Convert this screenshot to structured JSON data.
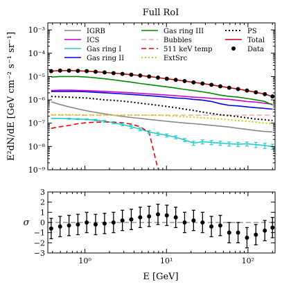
{
  "chart_data": [
    {
      "type": "line",
      "title": "Full RoI",
      "xlabel": "",
      "ylabel": "E²dN/dE [GeV cm⁻² s⁻¹ sr⁻¹]",
      "xscale": "log",
      "yscale": "log",
      "xlim": [
        0.35,
        215
      ],
      "ylim": [
        1e-09,
        0.002
      ],
      "x_ticks": [
        1,
        10,
        100
      ],
      "x_tick_labels": [
        "10⁰",
        "10¹",
        "10²"
      ],
      "y_ticks": [
        1e-09,
        1e-08,
        1e-07,
        1e-06,
        1e-05,
        0.0001,
        0.001
      ],
      "y_tick_labels": [
        "10⁻⁹",
        "10⁻⁸",
        "10⁻⁷",
        "10⁻⁶",
        "10⁻⁵",
        "10⁻⁴",
        "10⁻³"
      ],
      "legend_position": "top",
      "x": [
        0.385,
        0.495,
        0.637,
        0.819,
        1.05,
        1.35,
        1.74,
        2.24,
        2.88,
        3.7,
        4.76,
        6.12,
        7.87,
        10.1,
        13.0,
        16.7,
        21.5,
        27.7,
        35.6,
        45.7,
        58.8,
        75.6,
        97.2,
        125,
        161,
        200
      ],
      "series": [
        {
          "name": "IGRB",
          "color": "#888888",
          "style": "solid",
          "values": [
            8.2e-07,
            6.3e-07,
            5e-07,
            4.1e-07,
            3.4e-07,
            2.9e-07,
            2.5e-07,
            2.2e-07,
            1.95e-07,
            1.75e-07,
            1.6e-07,
            1.45e-07,
            1.32e-07,
            1.2e-07,
            1.1e-07,
            1.02e-07,
            9.5e-08,
            8.8e-08,
            8.1e-08,
            7.4e-08,
            6.8e-08,
            6e-08,
            5.4e-08,
            4.8e-08,
            4.4e-08,
            4.2e-08
          ]
        },
        {
          "name": "ICS",
          "color": "#cc00cc",
          "style": "solid",
          "values": [
            2.5e-06,
            2.6e-06,
            2.6e-06,
            2.55e-06,
            2.5e-06,
            2.4e-06,
            2.3e-06,
            2.2e-06,
            2.1e-06,
            2e-06,
            1.9e-06,
            1.8e-06,
            1.7e-06,
            1.6e-06,
            1.5e-06,
            1.4e-06,
            1.3e-06,
            1.25e-06,
            1.15e-06,
            1.1e-06,
            1.05e-06,
            9.5e-07,
            8.5e-07,
            8e-07,
            7.2e-07,
            6.5e-07
          ]
        },
        {
          "name": "Gas ring I",
          "color": "#22cccc",
          "style": "solid",
          "values": [
            1.6e-07,
            1.6e-07,
            1.55e-07,
            1.5e-07,
            1.45e-07,
            1.35e-07,
            1.2e-07,
            1.05e-07,
            8.8e-08,
            7e-08,
            5.5e-08,
            4.2e-08,
            3.5e-08,
            3e-08,
            2.5e-08,
            1.9e-08,
            1.4e-08,
            1.6e-08,
            1.5e-08,
            1.4e-08,
            1.3e-08,
            1.25e-08,
            1.3e-08,
            1.2e-08,
            1.1e-08,
            1e-08
          ]
        },
        {
          "name": "Gas ring II",
          "color": "#0000ee",
          "style": "solid",
          "values": [
            2.3e-06,
            2.3e-06,
            2.3e-06,
            2.3e-06,
            2.2e-06,
            2.1e-06,
            2e-06,
            1.9e-06,
            1.8e-06,
            1.7e-06,
            1.6e-06,
            1.5e-06,
            1.4e-06,
            1.3e-06,
            1.2e-06,
            1.15e-06,
            1.05e-06,
            9.8e-07,
            8.5e-07,
            6.8e-07,
            5.8e-07,
            5.5e-07,
            5e-07,
            4.6e-07,
            4.3e-07,
            4e-07
          ]
        },
        {
          "name": "Gas ring III",
          "color": "#008800",
          "style": "solid",
          "values": [
            9.5e-06,
            1e-05,
            1e-05,
            1e-05,
            9.5e-06,
            8.8e-06,
            8e-06,
            7.2e-06,
            6.4e-06,
            5.7e-06,
            5e-06,
            4.5e-06,
            4e-06,
            3.6e-06,
            3.2e-06,
            2.8e-06,
            2.5e-06,
            2.2e-06,
            1.9e-06,
            1.6e-06,
            1.4e-06,
            1.3e-06,
            1.15e-06,
            1e-06,
            8.5e-07,
            6e-07
          ]
        },
        {
          "name": "Bubbles",
          "color": "#ffaaaa",
          "style": "dashed",
          "values": [
            2.2e-07,
            2.2e-07,
            2.2e-07,
            2.2e-07,
            2.2e-07,
            2.2e-07,
            2.2e-07,
            2.2e-07,
            2.2e-07,
            2.2e-07,
            2.2e-07,
            2.2e-07,
            2.2e-07,
            2.2e-07,
            2.2e-07,
            2.2e-07,
            2.2e-07,
            2.2e-07,
            2.2e-07,
            2.2e-07,
            2.2e-07,
            2.2e-07,
            2.2e-07,
            2.2e-07,
            2.2e-07,
            2.2e-07
          ]
        },
        {
          "name": "511 keV temp",
          "color": "#ee0000",
          "style": "dashed",
          "values": [
            6e-08,
            7e-08,
            8e-08,
            9.5e-08,
            1.05e-07,
            1.1e-07,
            1.12e-07,
            1.1e-07,
            1.05e-07,
            9e-08,
            7e-08,
            4e-08,
            1.1e-09,
            null,
            null,
            null,
            null,
            null,
            null,
            null,
            null,
            null,
            null,
            null,
            null,
            1.1e-09
          ]
        },
        {
          "name": "ExtSrc",
          "color": "#cccc00",
          "style": "dotted",
          "values": [
            2.3e-07,
            2.3e-07,
            2.3e-07,
            2.3e-07,
            2.2e-07,
            2.2e-07,
            2.2e-07,
            2.2e-07,
            2.2e-07,
            2.2e-07,
            2.2e-07,
            2.2e-07,
            2.2e-07,
            2.1e-07,
            2e-07,
            1.9e-07,
            1.8e-07,
            1.7e-07,
            1.6e-07,
            1.5e-07,
            1.4e-07,
            1.3e-07,
            1.2e-07,
            1.1e-07,
            1e-07,
            9.5e-08
          ]
        },
        {
          "name": "PS",
          "color": "#000000",
          "style": "dotted",
          "values": [
            1.4e-06,
            1.35e-06,
            1.3e-06,
            1.25e-06,
            1.2e-06,
            1.1e-06,
            1e-06,
            9.5e-07,
            8.8e-07,
            8e-07,
            7.2e-07,
            6.5e-07,
            5.8e-07,
            5.2e-07,
            4.6e-07,
            4e-07,
            3.5e-07,
            3e-07,
            2.6e-07,
            2.3e-07,
            2.1e-07,
            1.9e-07,
            1.7e-07,
            1.5e-07,
            1.4e-07,
            1.3e-07
          ]
        },
        {
          "name": "Total",
          "color": "#cc0000",
          "style": "solid",
          "values": [
            1.7e-05,
            1.8e-05,
            1.8e-05,
            1.75e-05,
            1.7e-05,
            1.6e-05,
            1.5e-05,
            1.4e-05,
            1.3e-05,
            1.2e-05,
            1.1e-05,
            1e-05,
            9e-06,
            8e-06,
            7.2e-06,
            6.4e-06,
            5.6e-06,
            5e-06,
            4.4e-06,
            3.8e-06,
            3.3e-06,
            2.9e-06,
            2.5e-06,
            2.1e-06,
            1.75e-06,
            1.4e-06
          ]
        },
        {
          "name": "Data",
          "color": "#000000",
          "style": "points",
          "values": [
            1.7e-05,
            1.8e-05,
            1.8e-05,
            1.75e-05,
            1.7e-05,
            1.6e-05,
            1.5e-05,
            1.4e-05,
            1.3e-05,
            1.2e-05,
            1.1e-05,
            1e-05,
            9e-06,
            8e-06,
            7.2e-06,
            6.4e-06,
            5.6e-06,
            5e-06,
            4.4e-06,
            3.8e-06,
            3.3e-06,
            2.9e-06,
            2.5e-06,
            2.1e-06,
            1.75e-06,
            1.4e-06
          ]
        }
      ],
      "gas_ring_I_error": [
        0,
        0,
        0.05,
        0.05,
        0.05,
        0.08,
        0.1,
        0.1,
        0.12,
        0.15,
        0.15,
        0.15,
        0.15,
        0.15,
        0.15,
        0.15,
        0.2,
        0.2,
        0.2,
        0.2,
        0.2,
        0.2,
        0.2,
        0.25,
        0.25,
        0.25
      ]
    },
    {
      "type": "scatter",
      "title": "",
      "xlabel": "E [GeV]",
      "ylabel": "σ",
      "xscale": "log",
      "xlim": [
        0.35,
        215
      ],
      "ylim": [
        -3,
        3
      ],
      "y_ticks": [
        -3,
        -2,
        -1,
        0,
        1,
        2,
        3
      ],
      "y_tick_labels": [
        "−3",
        "−2",
        "−1",
        "0",
        "1",
        "2",
        "3"
      ],
      "x_ticks": [
        1,
        10,
        100
      ],
      "x_tick_labels": [
        "10⁰",
        "10¹",
        "10²"
      ],
      "reference_line": 0,
      "x": [
        0.385,
        0.495,
        0.637,
        0.819,
        1.05,
        1.35,
        1.74,
        2.24,
        2.88,
        3.7,
        4.76,
        6.12,
        7.87,
        10.1,
        13.0,
        16.7,
        21.5,
        27.7,
        35.6,
        45.7,
        58.8,
        75.6,
        97.2,
        125,
        161,
        200
      ],
      "values": [
        -0.6,
        -0.4,
        -0.3,
        -0.2,
        0.0,
        -0.2,
        -0.1,
        0.0,
        0.2,
        0.3,
        0.5,
        0.6,
        0.8,
        0.7,
        0.5,
        0.0,
        0.2,
        0.0,
        -0.4,
        -0.3,
        -1.0,
        -1.0,
        -1.5,
        -1.2,
        -0.8,
        -0.5
      ],
      "errors": [
        1.0,
        1.0,
        1.0,
        1.0,
        1.0,
        1.0,
        1.0,
        1.0,
        1.0,
        1.0,
        1.0,
        1.0,
        1.0,
        1.0,
        1.0,
        1.0,
        1.0,
        1.0,
        1.0,
        1.0,
        1.0,
        1.0,
        1.0,
        1.0,
        1.0,
        1.0
      ]
    }
  ]
}
